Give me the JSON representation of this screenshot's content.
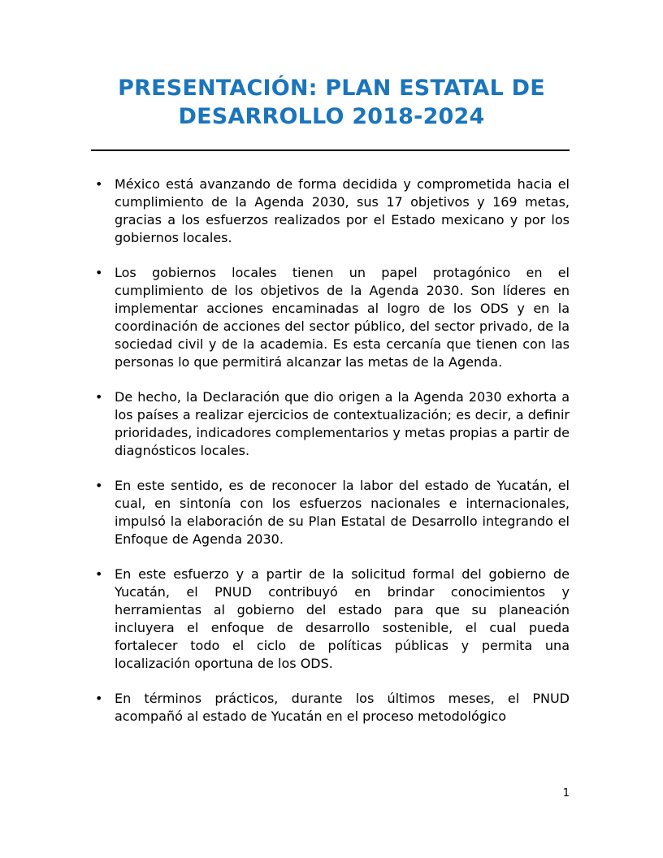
{
  "header": {
    "title_lines": [
      "PRESENTACIÓN: PLAN ESTATAL DE",
      "DESARROLLO 2018-2024"
    ],
    "title_color": "#1B75BC"
  },
  "list": {
    "bullet_glyph": "•",
    "items": [
      "México está avanzando de forma decidida y comprometida hacia el cumplimiento de la Agenda 2030, sus 17 objetivos y 169 metas, gracias a los esfuerzos realizados por el Estado mexicano y por los gobiernos locales.",
      "Los gobiernos locales tienen un papel protagónico en el cumplimiento de los objetivos de la Agenda 2030. Son líderes en implementar acciones encaminadas al logro de los ODS y en la coordinación de acciones del sector público, del sector privado, de la sociedad civil y de la academia. Es esta cercanía que tienen con las personas lo que permitirá alcanzar las metas de la Agenda.",
      "De hecho, la Declaración que dio origen a la Agenda 2030 exhorta a los países a realizar ejercicios de contextualización; es decir, a definir prioridades, indicadores complementarios y metas propias a partir de diagnósticos locales.",
      "En este sentido, es de reconocer la labor del estado de Yucatán, el cual, en sintonía con los esfuerzos nacionales e internacionales, impulsó la elaboración de su Plan Estatal de Desarrollo integrando el Enfoque de Agenda 2030.",
      "En este esfuerzo y a partir de la solicitud formal del gobierno de Yucatán, el PNUD contribuyó en brindar conocimientos y herramientas al gobierno del estado para que su planeación incluyera el enfoque de desarrollo sostenible, el cual pueda fortalecer todo el ciclo de políticas públicas y permita una localización oportuna de los ODS.",
      "En términos prácticos, durante los últimos meses, el PNUD acompañó al estado de Yucatán en el proceso metodológico"
    ]
  },
  "footer": {
    "page_number": "1"
  }
}
